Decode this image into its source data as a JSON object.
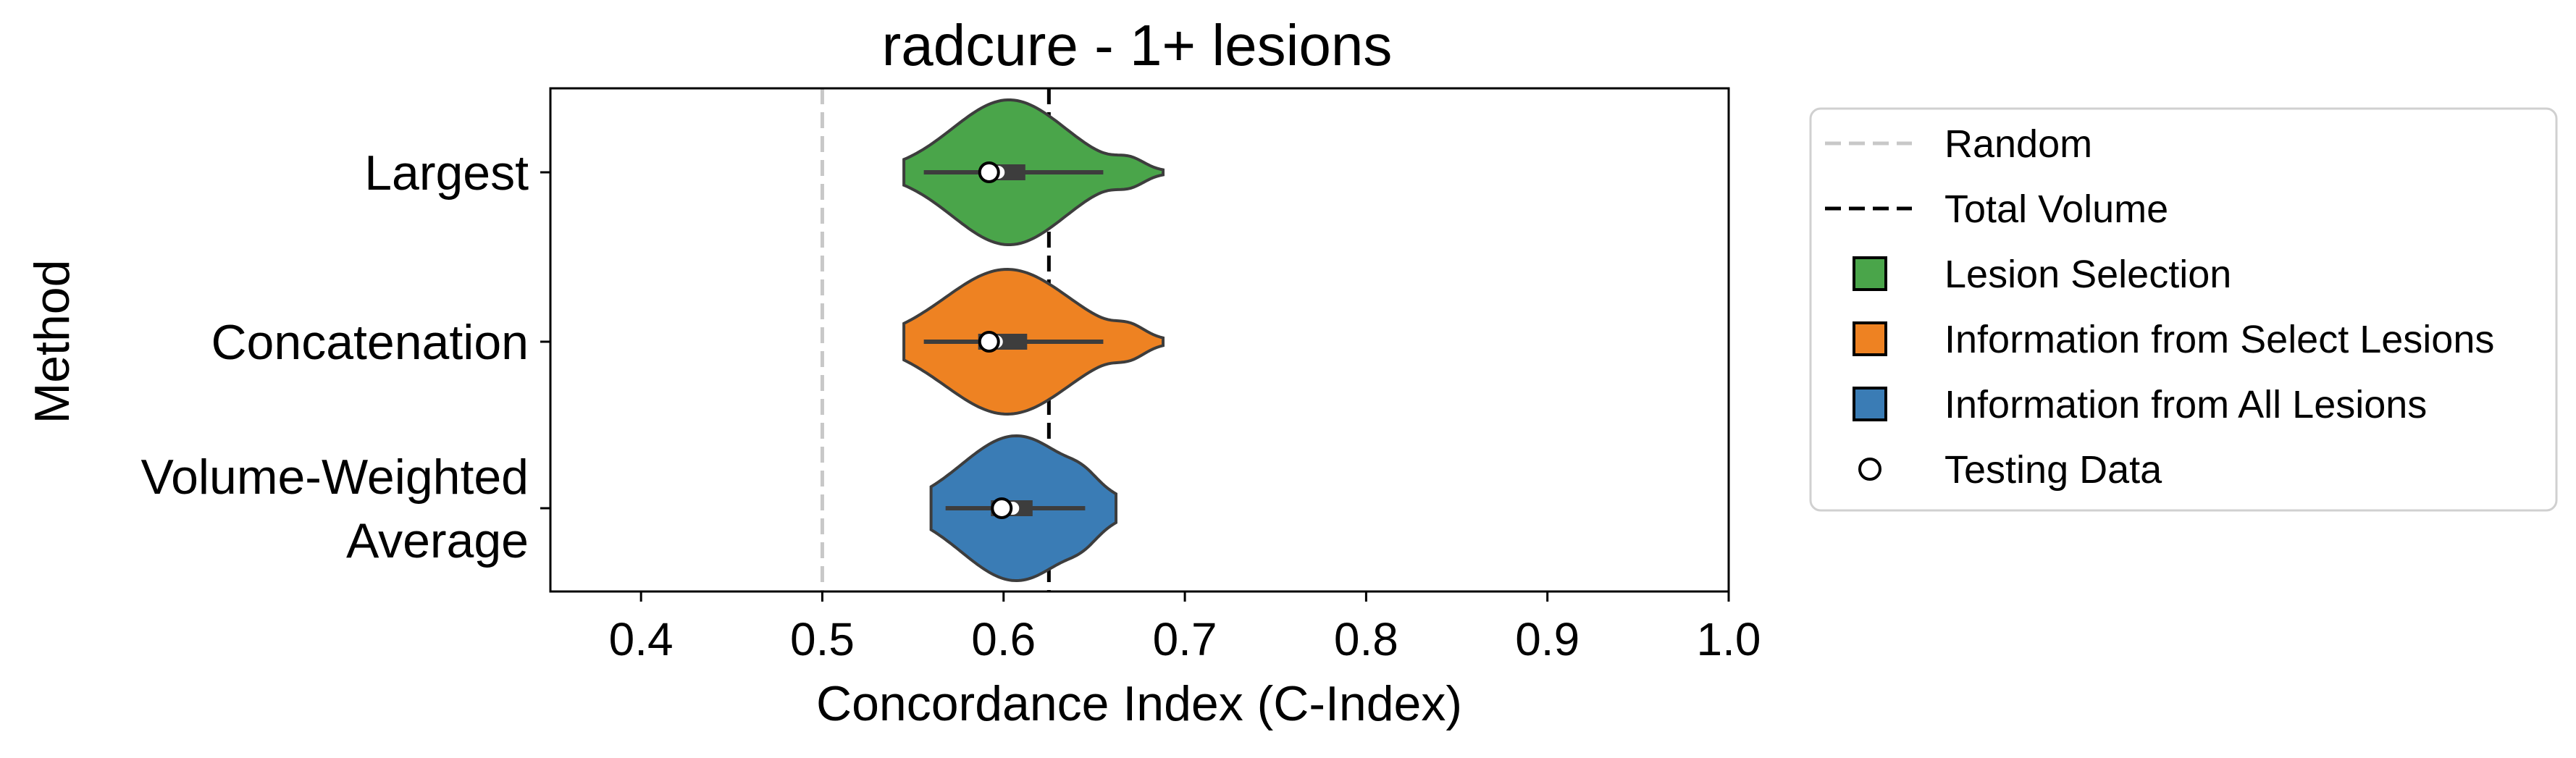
{
  "chart_data": {
    "type": "violin",
    "title": "radcure - 1+ lesions",
    "xlabel": "Concordance Index (C-Index)",
    "ylabel": "Method",
    "xlim": [
      0.35,
      1.0
    ],
    "xticks": [
      "0.4",
      "0.5",
      "0.6",
      "0.7",
      "0.8",
      "0.9",
      "1.0"
    ],
    "categories": [
      "Largest",
      "Concatenation",
      "Volume-Weighted\nAverage"
    ],
    "reference_lines": [
      {
        "name": "Random",
        "x": 0.5,
        "style": "dashed",
        "color": "#c8c8c8"
      },
      {
        "name": "Total Volume",
        "x": 0.625,
        "style": "dashed",
        "color": "#000000"
      }
    ],
    "groups": [
      {
        "category": "Largest",
        "legend": "Lesion Selection",
        "color": "#4aa54a",
        "min": 0.545,
        "max": 0.688,
        "q1": 0.588,
        "median": 0.597,
        "q3": 0.612,
        "whisker_low": 0.556,
        "whisker_high": 0.655,
        "testing": 0.592,
        "density_center": 0.603
      },
      {
        "category": "Concatenation",
        "legend": "Information from Select Lesions",
        "color": "#ee8222",
        "min": 0.545,
        "max": 0.688,
        "q1": 0.586,
        "median": 0.596,
        "q3": 0.613,
        "whisker_low": 0.556,
        "whisker_high": 0.655,
        "testing": 0.592,
        "density_center": 0.602
      },
      {
        "category": "Volume-Weighted\nAverage",
        "legend": "Information from All Lesions",
        "color": "#3a7cb5",
        "min": 0.56,
        "max": 0.662,
        "q1": 0.593,
        "median": 0.605,
        "q3": 0.616,
        "whisker_low": 0.568,
        "whisker_high": 0.645,
        "testing": 0.599,
        "density_center": 0.607
      }
    ],
    "legend": {
      "placement": "outside-right",
      "entries": [
        {
          "label": "Random",
          "kind": "dashed-line",
          "color": "#c8c8c8"
        },
        {
          "label": "Total Volume",
          "kind": "dashed-line",
          "color": "#000000"
        },
        {
          "label": "Lesion Selection",
          "kind": "patch",
          "color": "#4aa54a"
        },
        {
          "label": "Information from Select Lesions",
          "kind": "patch",
          "color": "#ee8222"
        },
        {
          "label": "Information from All Lesions",
          "kind": "patch",
          "color": "#3a7cb5"
        },
        {
          "label": "Testing Data",
          "kind": "circle",
          "color": "#ffffff"
        }
      ]
    },
    "grid": false
  }
}
